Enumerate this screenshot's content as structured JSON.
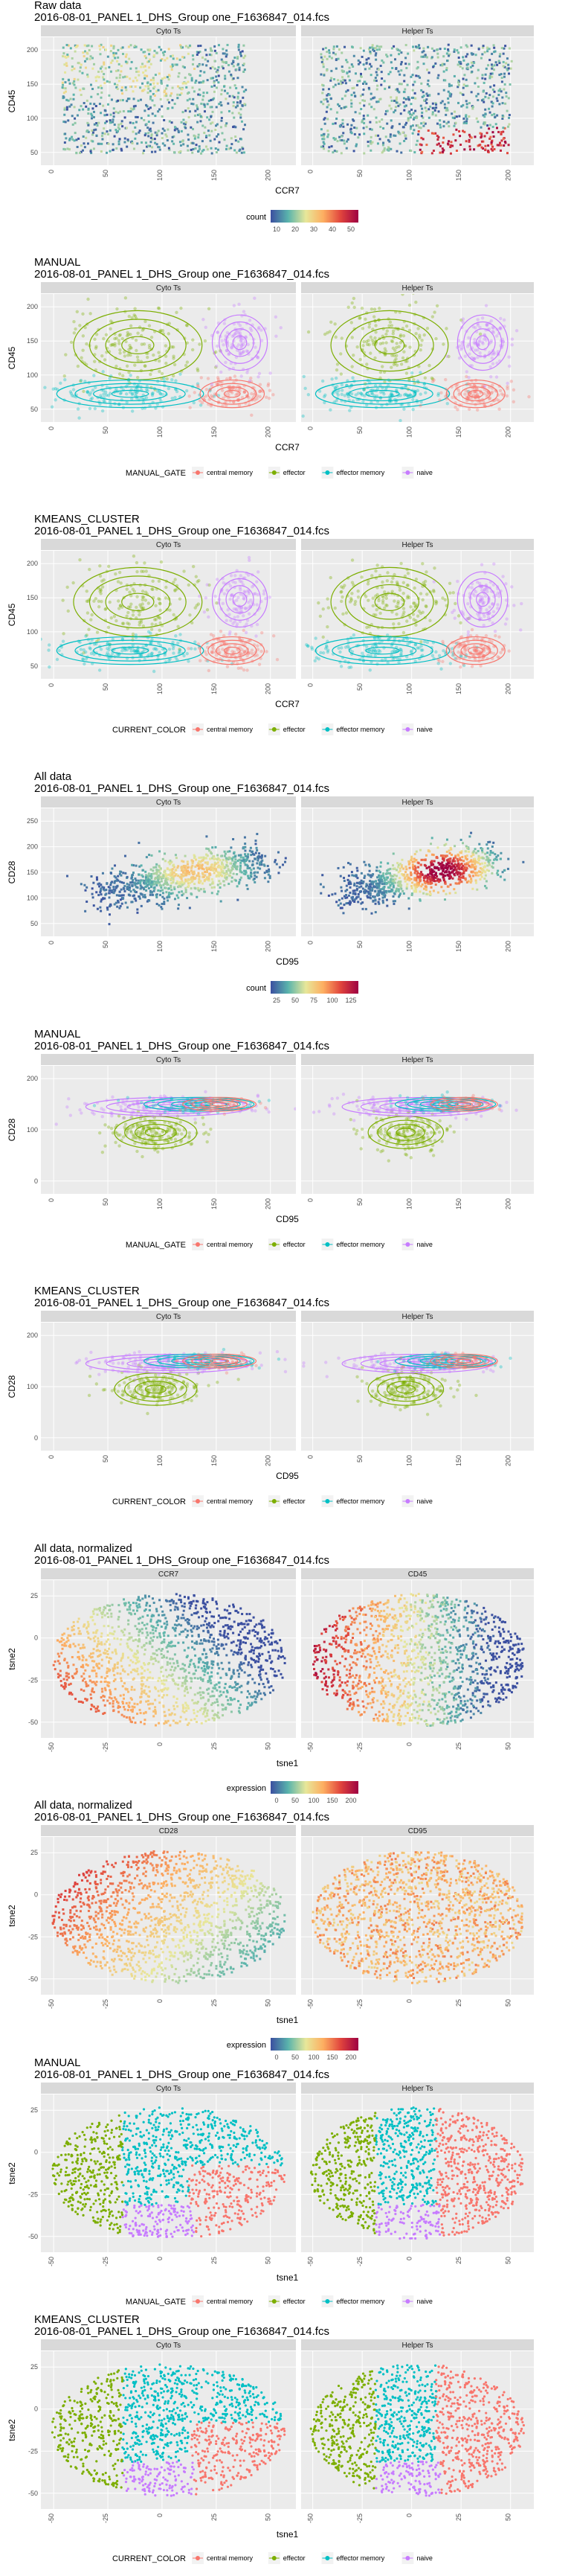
{
  "panels": [
    {
      "kind": "hex",
      "title": "Raw data",
      "subtitle": "2016-08-01_PANEL 1_DHS_Group one_F1636847_014.fcs",
      "facets": [
        "Cyto Ts",
        "Helper Ts"
      ],
      "xlabel": "CCR7",
      "ylabel": "CD45",
      "xticks": [
        "0",
        "50",
        "100",
        "150",
        "200"
      ],
      "yticks": [
        "50",
        "100",
        "150",
        "200"
      ],
      "legend": {
        "type": "gradient",
        "title": "count",
        "ticks": [
          "10",
          "20",
          "30",
          "40",
          "50"
        ],
        "colors": [
          "#3b4fa0",
          "#5ab4ac",
          "#e7e79a",
          "#fdae61",
          "#e0443d",
          "#9e0142"
        ]
      }
    },
    {
      "kind": "cluster",
      "title": "MANUAL",
      "subtitle": "2016-08-01_PANEL 1_DHS_Group one_F1636847_014.fcs",
      "facets": [
        "Cyto Ts",
        "Helper Ts"
      ],
      "xlabel": "CCR7",
      "ylabel": "CD45",
      "xticks": [
        "0",
        "50",
        "100",
        "150",
        "200"
      ],
      "yticks": [
        "50",
        "100",
        "150",
        "200"
      ],
      "legend": {
        "type": "discrete",
        "title": "MANUAL_GATE",
        "items": [
          "central memory",
          "effector",
          "effector memory",
          "naive"
        ],
        "colors": [
          "#f8766d",
          "#7cae00",
          "#00bfc4",
          "#c77cff"
        ]
      }
    },
    {
      "kind": "cluster",
      "title": "KMEANS_CLUSTER",
      "subtitle": "2016-08-01_PANEL 1_DHS_Group one_F1636847_014.fcs",
      "facets": [
        "Cyto Ts",
        "Helper Ts"
      ],
      "xlabel": "CCR7",
      "ylabel": "CD45",
      "xticks": [
        "0",
        "50",
        "100",
        "150",
        "200"
      ],
      "yticks": [
        "50",
        "100",
        "150",
        "200"
      ],
      "legend": {
        "type": "discrete",
        "title": "CURRENT_COLOR",
        "items": [
          "central memory",
          "effector",
          "effector memory",
          "naive"
        ],
        "colors": [
          "#f8766d",
          "#7cae00",
          "#00bfc4",
          "#c77cff"
        ]
      }
    },
    {
      "kind": "hex",
      "title": "All data",
      "subtitle": "2016-08-01_PANEL 1_DHS_Group one_F1636847_014.fcs",
      "facets": [
        "Cyto Ts",
        "Helper Ts"
      ],
      "xlabel": "CD95",
      "ylabel": "CD28",
      "xticks": [
        "0",
        "50",
        "100",
        "150",
        "200"
      ],
      "yticks": [
        "50",
        "100",
        "150",
        "200",
        "250"
      ],
      "legend": {
        "type": "gradient",
        "title": "count",
        "ticks": [
          "25",
          "50",
          "75",
          "100",
          "125"
        ],
        "colors": [
          "#3b4fa0",
          "#5ab4ac",
          "#e7e79a",
          "#fdae61",
          "#e0443d",
          "#9e0142"
        ]
      }
    },
    {
      "kind": "cluster",
      "title": "MANUAL",
      "subtitle": "2016-08-01_PANEL 1_DHS_Group one_F1636847_014.fcs",
      "facets": [
        "Cyto Ts",
        "Helper Ts"
      ],
      "xlabel": "CD95",
      "ylabel": "CD28",
      "xticks": [
        "0",
        "50",
        "100",
        "150",
        "200"
      ],
      "yticks": [
        "0",
        "100",
        "200"
      ],
      "legend": {
        "type": "discrete",
        "title": "MANUAL_GATE",
        "items": [
          "central memory",
          "effector",
          "effector memory",
          "naive"
        ],
        "colors": [
          "#f8766d",
          "#7cae00",
          "#00bfc4",
          "#c77cff"
        ]
      }
    },
    {
      "kind": "cluster",
      "title": "KMEANS_CLUSTER",
      "subtitle": "2016-08-01_PANEL 1_DHS_Group one_F1636847_014.fcs",
      "facets": [
        "Cyto Ts",
        "Helper Ts"
      ],
      "xlabel": "CD95",
      "ylabel": "CD28",
      "xticks": [
        "0",
        "50",
        "100",
        "150",
        "200"
      ],
      "yticks": [
        "0",
        "100",
        "200"
      ],
      "legend": {
        "type": "discrete",
        "title": "CURRENT_COLOR",
        "items": [
          "central memory",
          "effector",
          "effector memory",
          "naive"
        ],
        "colors": [
          "#f8766d",
          "#7cae00",
          "#00bfc4",
          "#c77cff"
        ]
      }
    },
    {
      "kind": "tsneexpr",
      "title": "All data, normalized",
      "subtitle": "2016-08-01_PANEL 1_DHS_Group one_F1636847_014.fcs",
      "facets": [
        "CCR7",
        "CD45"
      ],
      "xlabel": "tsne1",
      "ylabel": "tsne2",
      "xticks": [
        "-50",
        "-25",
        "0",
        "25",
        "50"
      ],
      "yticks": [
        "-50",
        "-25",
        "0",
        "25"
      ],
      "legend": {
        "type": "gradient",
        "title": "expression",
        "ticks": [
          "0",
          "50",
          "100",
          "150",
          "200"
        ],
        "colors": [
          "#3b4fa0",
          "#5ab4ac",
          "#e7e79a",
          "#fdae61",
          "#e0443d",
          "#9e0142"
        ]
      }
    },
    {
      "kind": "tsneexpr",
      "title": "All data, normalized",
      "subtitle": "2016-08-01_PANEL 1_DHS_Group one_F1636847_014.fcs",
      "facets": [
        "CD28",
        "CD95"
      ],
      "xlabel": "tsne1",
      "ylabel": "tsne2",
      "xticks": [
        "-50",
        "-25",
        "0",
        "25",
        "50"
      ],
      "yticks": [
        "-50",
        "-25",
        "0",
        "25"
      ],
      "legend": {
        "type": "gradient",
        "title": "expression",
        "ticks": [
          "0",
          "50",
          "100",
          "150",
          "200"
        ],
        "colors": [
          "#3b4fa0",
          "#5ab4ac",
          "#e7e79a",
          "#fdae61",
          "#e0443d",
          "#9e0142"
        ]
      }
    },
    {
      "kind": "tsnecluster",
      "title": "MANUAL",
      "subtitle": "2016-08-01_PANEL 1_DHS_Group one_F1636847_014.fcs",
      "facets": [
        "Cyto Ts",
        "Helper Ts"
      ],
      "xlabel": "tsne1",
      "ylabel": "tsne2",
      "xticks": [
        "-50",
        "-25",
        "0",
        "25",
        "50"
      ],
      "yticks": [
        "-50",
        "-25",
        "0",
        "25"
      ],
      "legend": {
        "type": "discrete",
        "title": "MANUAL_GATE",
        "items": [
          "central memory",
          "effector",
          "effector memory",
          "naive"
        ],
        "colors": [
          "#f8766d",
          "#7cae00",
          "#00bfc4",
          "#c77cff"
        ]
      }
    },
    {
      "kind": "tsnecluster",
      "title": "KMEANS_CLUSTER",
      "subtitle": "2016-08-01_PANEL 1_DHS_Group one_F1636847_014.fcs",
      "facets": [
        "Cyto Ts",
        "Helper Ts"
      ],
      "xlabel": "tsne1",
      "ylabel": "tsne2",
      "xticks": [
        "-50",
        "-25",
        "0",
        "25",
        "50"
      ],
      "yticks": [
        "-50",
        "-25",
        "0",
        "25"
      ],
      "legend": {
        "type": "discrete",
        "title": "CURRENT_COLOR",
        "items": [
          "central memory",
          "effector",
          "effector memory",
          "naive"
        ],
        "colors": [
          "#f8766d",
          "#7cae00",
          "#00bfc4",
          "#c77cff"
        ]
      }
    }
  ],
  "chart_data": [
    {
      "type": "heatmap",
      "title": "Raw data",
      "xlabel": "CCR7",
      "ylabel": "CD45",
      "facets": [
        "Cyto Ts",
        "Helper Ts"
      ],
      "xlim": [
        0,
        220
      ],
      "ylim": [
        30,
        230
      ],
      "fill": "count",
      "fill_range": [
        1,
        55
      ]
    },
    {
      "type": "scatter",
      "title": "MANUAL",
      "xlabel": "CCR7",
      "ylabel": "CD45",
      "facets": [
        "Cyto Ts",
        "Helper Ts"
      ],
      "xlim": [
        0,
        220
      ],
      "ylim": [
        30,
        230
      ],
      "series": [
        {
          "name": "central memory"
        },
        {
          "name": "effector"
        },
        {
          "name": "effector memory"
        },
        {
          "name": "naive"
        }
      ]
    },
    {
      "type": "scatter",
      "title": "KMEANS_CLUSTER",
      "xlabel": "CCR7",
      "ylabel": "CD45",
      "facets": [
        "Cyto Ts",
        "Helper Ts"
      ],
      "xlim": [
        0,
        220
      ],
      "ylim": [
        30,
        230
      ],
      "series": [
        {
          "name": "central memory"
        },
        {
          "name": "effector"
        },
        {
          "name": "effector memory"
        },
        {
          "name": "naive"
        }
      ]
    },
    {
      "type": "heatmap",
      "title": "All data",
      "xlabel": "CD95",
      "ylabel": "CD28",
      "facets": [
        "Cyto Ts",
        "Helper Ts"
      ],
      "xlim": [
        0,
        220
      ],
      "ylim": [
        20,
        270
      ],
      "fill": "count",
      "fill_range": [
        1,
        130
      ]
    },
    {
      "type": "scatter",
      "title": "MANUAL",
      "xlabel": "CD95",
      "ylabel": "CD28",
      "facets": [
        "Cyto Ts",
        "Helper Ts"
      ],
      "xlim": [
        0,
        220
      ],
      "ylim": [
        -20,
        270
      ],
      "series": [
        {
          "name": "central memory"
        },
        {
          "name": "effector"
        },
        {
          "name": "effector memory"
        },
        {
          "name": "naive"
        }
      ]
    },
    {
      "type": "scatter",
      "title": "KMEANS_CLUSTER",
      "xlabel": "CD95",
      "ylabel": "CD28",
      "facets": [
        "Cyto Ts",
        "Helper Ts"
      ],
      "xlim": [
        0,
        220
      ],
      "ylim": [
        -20,
        270
      ],
      "series": [
        {
          "name": "central memory"
        },
        {
          "name": "effector"
        },
        {
          "name": "effector memory"
        },
        {
          "name": "naive"
        }
      ]
    },
    {
      "type": "scatter",
      "title": "All data, normalized",
      "xlabel": "tsne1",
      "ylabel": "tsne2",
      "facets": [
        "CCR7",
        "CD45"
      ],
      "xlim": [
        -52,
        52
      ],
      "ylim": [
        -52,
        48
      ],
      "fill": "expression",
      "fill_range": [
        0,
        230
      ]
    },
    {
      "type": "scatter",
      "title": "All data, normalized",
      "xlabel": "tsne1",
      "ylabel": "tsne2",
      "facets": [
        "CD28",
        "CD95"
      ],
      "xlim": [
        -52,
        52
      ],
      "ylim": [
        -52,
        48
      ],
      "fill": "expression",
      "fill_range": [
        0,
        230
      ]
    },
    {
      "type": "scatter",
      "title": "MANUAL",
      "xlabel": "tsne1",
      "ylabel": "tsne2",
      "facets": [
        "Cyto Ts",
        "Helper Ts"
      ],
      "xlim": [
        -52,
        52
      ],
      "ylim": [
        -52,
        48
      ],
      "series": [
        {
          "name": "central memory"
        },
        {
          "name": "effector"
        },
        {
          "name": "effector memory"
        },
        {
          "name": "naive"
        }
      ]
    },
    {
      "type": "scatter",
      "title": "KMEANS_CLUSTER",
      "xlabel": "tsne1",
      "ylabel": "tsne2",
      "facets": [
        "Cyto Ts",
        "Helper Ts"
      ],
      "xlim": [
        -52,
        52
      ],
      "ylim": [
        -52,
        48
      ],
      "series": [
        {
          "name": "central memory"
        },
        {
          "name": "effector"
        },
        {
          "name": "effector memory"
        },
        {
          "name": "naive"
        }
      ]
    }
  ]
}
